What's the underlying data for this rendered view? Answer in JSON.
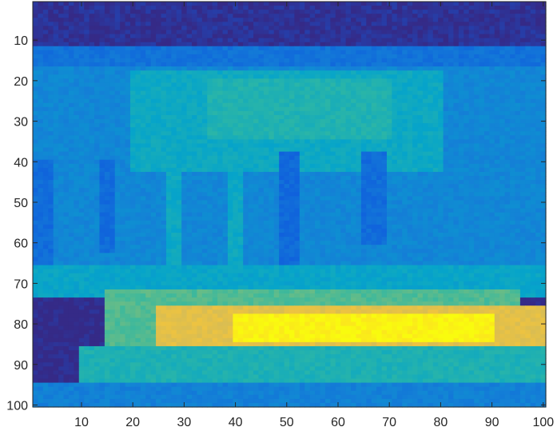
{
  "chart_data": {
    "type": "heatmap",
    "title": "",
    "xlabel": "",
    "ylabel": "",
    "colormap": "parula",
    "colormap_colors": [
      "#352a87",
      "#0f5cdd",
      "#1481d6",
      "#06a4ca",
      "#2eb7a4",
      "#87bf77",
      "#d1bb59",
      "#fec832",
      "#f9fb0e"
    ],
    "value_range": [
      0,
      1
    ],
    "xlim": [
      0.5,
      100.5
    ],
    "ylim": [
      0.5,
      100.5
    ],
    "y_reversed": true,
    "grid": false,
    "x_ticks": [
      10,
      20,
      30,
      40,
      50,
      60,
      70,
      80,
      90,
      100
    ],
    "y_ticks": [
      10,
      20,
      30,
      40,
      50,
      60,
      70,
      80,
      90,
      100
    ],
    "x_tick_labels": [
      "10",
      "20",
      "30",
      "40",
      "50",
      "60",
      "70",
      "80",
      "90",
      "100"
    ],
    "y_tick_labels": [
      "10",
      "20",
      "30",
      "40",
      "50",
      "60",
      "70",
      "80",
      "90",
      "100"
    ],
    "rows": 100,
    "cols": 100,
    "regions": [
      {
        "label": "top dark band",
        "rows": [
          1,
          11
        ],
        "cols": [
          1,
          100
        ],
        "value": 0.02
      },
      {
        "label": "upper blue band",
        "rows": [
          12,
          16
        ],
        "cols": [
          1,
          100
        ],
        "value": 0.2
      },
      {
        "label": "background",
        "rows": [
          17,
          65
        ],
        "cols": [
          1,
          100
        ],
        "value": 0.27
      },
      {
        "label": "canopy",
        "rows": [
          18,
          42
        ],
        "cols": [
          20,
          80
        ],
        "value": 0.4
      },
      {
        "label": "canopy peak",
        "rows": [
          20,
          34
        ],
        "cols": [
          35,
          70
        ],
        "value": 0.46
      },
      {
        "label": "dark column",
        "rows": [
          40,
          62
        ],
        "cols": [
          14,
          16
        ],
        "value": 0.18
      },
      {
        "label": "dark column",
        "rows": [
          38,
          65
        ],
        "cols": [
          49,
          52
        ],
        "value": 0.17
      },
      {
        "label": "dark column",
        "rows": [
          38,
          60
        ],
        "cols": [
          65,
          69
        ],
        "value": 0.18
      },
      {
        "label": "dark column",
        "rows": [
          40,
          65
        ],
        "cols": [
          1,
          4
        ],
        "value": 0.18
      },
      {
        "label": "light column",
        "rows": [
          38,
          70
        ],
        "cols": [
          27,
          29
        ],
        "value": 0.4
      },
      {
        "label": "light column",
        "rows": [
          38,
          70
        ],
        "cols": [
          39,
          41
        ],
        "value": 0.4
      },
      {
        "label": "lower cyan band",
        "rows": [
          66,
          73
        ],
        "cols": [
          1,
          100
        ],
        "value": 0.38
      },
      {
        "label": "green zone",
        "rows": [
          72,
          88
        ],
        "cols": [
          15,
          95
        ],
        "value": 0.55
      },
      {
        "label": "warm zone",
        "rows": [
          76,
          86
        ],
        "cols": [
          25,
          100
        ],
        "value": 0.8
      },
      {
        "label": "bright core",
        "rows": [
          78,
          84
        ],
        "cols": [
          40,
          90
        ],
        "value": 0.98
      },
      {
        "label": "bottom green band",
        "rows": [
          86,
          94
        ],
        "cols": [
          10,
          100
        ],
        "value": 0.45
      },
      {
        "label": "bottom blue band",
        "rows": [
          95,
          100
        ],
        "cols": [
          1,
          100
        ],
        "value": 0.25
      }
    ]
  }
}
